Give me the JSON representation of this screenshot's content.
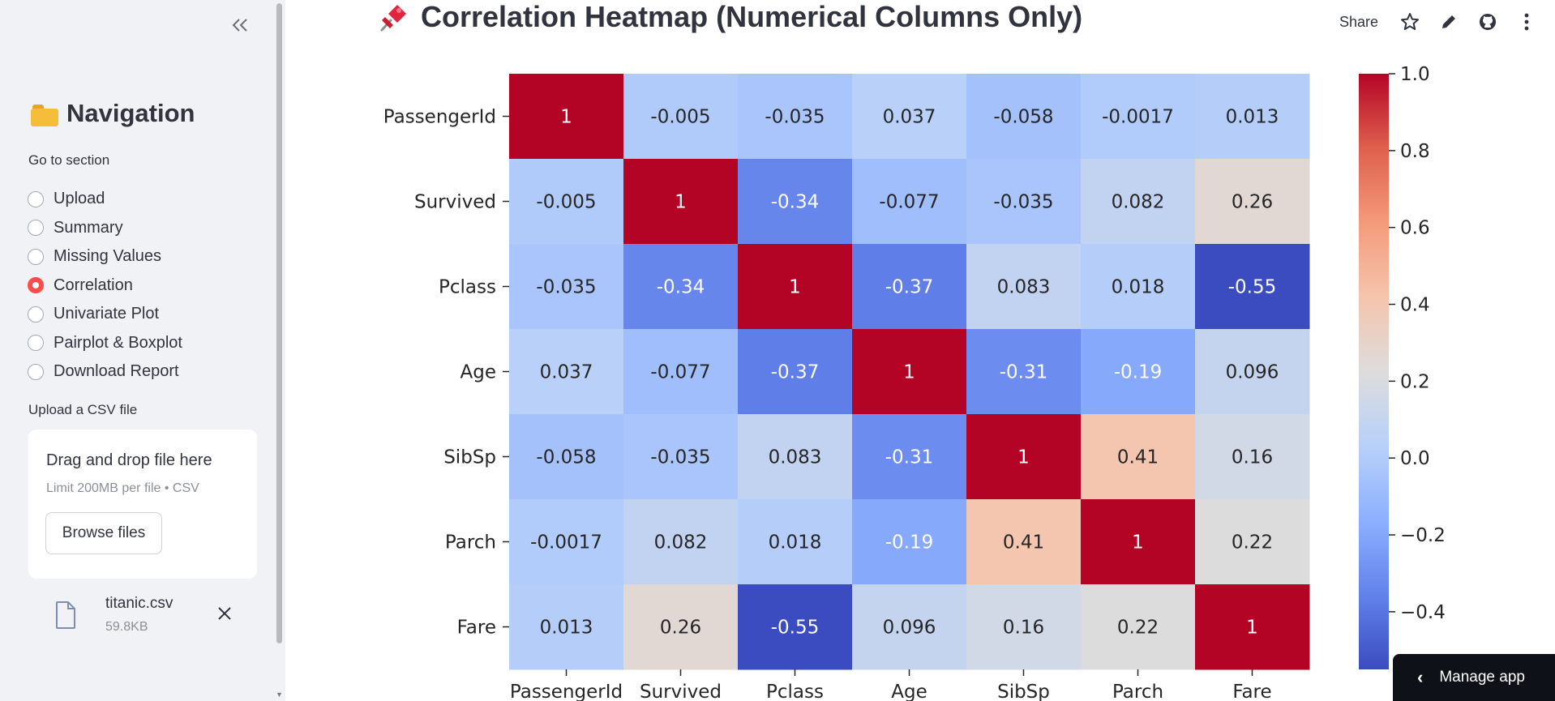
{
  "sidebar": {
    "collapse_icon": "double-chevron-left-icon",
    "nav_title": "Navigation",
    "nav_icon": "folder-icon",
    "radio_label": "Go to section",
    "sections": [
      {
        "label": "Upload",
        "selected": false
      },
      {
        "label": "Summary",
        "selected": false
      },
      {
        "label": "Missing Values",
        "selected": false
      },
      {
        "label": "Correlation",
        "selected": true
      },
      {
        "label": "Univariate Plot",
        "selected": false
      },
      {
        "label": "Pairplot & Boxplot",
        "selected": false
      },
      {
        "label": "Download Report",
        "selected": false
      }
    ],
    "upload_label": "Upload a CSV file",
    "uploader": {
      "drag_text": "Drag and drop file here",
      "limit_text": "Limit 200MB per file • CSV",
      "browse_label": "Browse files"
    },
    "file": {
      "name": "titanic.csv",
      "size": "59.8KB"
    }
  },
  "header": {
    "title": "Correlation Heatmap (Numerical Columns Only)",
    "title_icon": "pushpin-icon",
    "share_label": "Share",
    "icons": [
      "star-icon",
      "pencil-icon",
      "github-icon",
      "more-vertical-icon"
    ]
  },
  "manage_app": {
    "label": "Manage app"
  },
  "colors": {
    "accent": "#ff4b4b",
    "sidebar_bg": "#f0f2f6",
    "text": "#31333f"
  },
  "chart_data": {
    "type": "heatmap",
    "colormap": "coolwarm",
    "categories": [
      "PassengerId",
      "Survived",
      "Pclass",
      "Age",
      "SibSp",
      "Parch",
      "Fare"
    ],
    "matrix": [
      [
        1,
        -0.005,
        -0.035,
        0.037,
        -0.058,
        -0.0017,
        0.013
      ],
      [
        -0.005,
        1,
        -0.34,
        -0.077,
        -0.035,
        0.082,
        0.26
      ],
      [
        -0.035,
        -0.34,
        1,
        -0.37,
        0.083,
        0.018,
        -0.55
      ],
      [
        0.037,
        -0.077,
        -0.37,
        1,
        -0.31,
        -0.19,
        0.096
      ],
      [
        -0.058,
        -0.035,
        0.083,
        -0.31,
        1,
        0.41,
        0.16
      ],
      [
        -0.0017,
        0.082,
        0.018,
        -0.19,
        0.41,
        1,
        0.22
      ],
      [
        0.013,
        0.26,
        -0.55,
        0.096,
        0.16,
        0.22,
        1
      ]
    ],
    "labels": [
      [
        "1",
        "-0.005",
        "-0.035",
        "0.037",
        "-0.058",
        "-0.0017",
        "0.013"
      ],
      [
        "-0.005",
        "1",
        "-0.34",
        "-0.077",
        "-0.035",
        "0.082",
        "0.26"
      ],
      [
        "-0.035",
        "-0.34",
        "1",
        "-0.37",
        "0.083",
        "0.018",
        "-0.55"
      ],
      [
        "0.037",
        "-0.077",
        "-0.37",
        "1",
        "-0.31",
        "-0.19",
        "0.096"
      ],
      [
        "-0.058",
        "-0.035",
        "0.083",
        "-0.31",
        "1",
        "0.41",
        "0.16"
      ],
      [
        "-0.0017",
        "0.082",
        "0.018",
        "-0.19",
        "0.41",
        "1",
        "0.22"
      ],
      [
        "0.013",
        "0.26",
        "-0.55",
        "0.096",
        "0.16",
        "0.22",
        "1"
      ]
    ],
    "vmin": -0.55,
    "vmax": 1.0,
    "colorbar_ticks": [
      1.0,
      0.8,
      0.6,
      0.4,
      0.2,
      0.0,
      -0.2,
      -0.4
    ],
    "colorbar_tick_labels": [
      "1.0",
      "0.8",
      "0.6",
      "0.4",
      "0.2",
      "0.0",
      "−0.2",
      "−0.4"
    ]
  }
}
